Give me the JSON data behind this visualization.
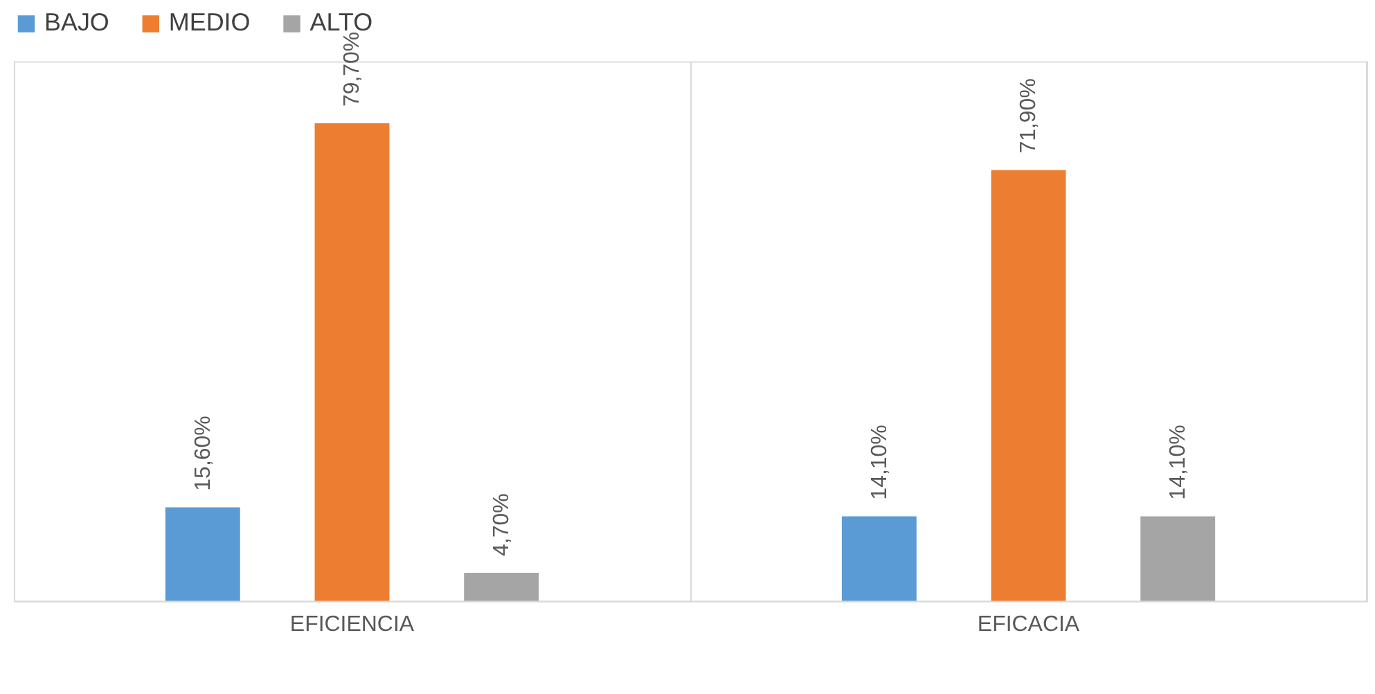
{
  "chart_data": {
    "type": "bar",
    "categories": [
      "EFICIENCIA",
      "EFICACIA"
    ],
    "series": [
      {
        "name": "BAJO",
        "color": "#5b9bd5",
        "values": [
          15.6,
          14.1
        ],
        "value_labels": [
          "15,60%",
          "14,10%"
        ]
      },
      {
        "name": "MEDIO",
        "color": "#ed7d31",
        "values": [
          79.7,
          71.9
        ],
        "value_labels": [
          "79,70%",
          "71,90%"
        ]
      },
      {
        "name": "ALTO",
        "color": "#a5a5a5",
        "values": [
          4.7,
          14.1
        ],
        "value_labels": [
          "4,70%",
          "14,10%"
        ]
      }
    ],
    "legend": "top",
    "grid": "x",
    "tick_labels": "x"
  }
}
